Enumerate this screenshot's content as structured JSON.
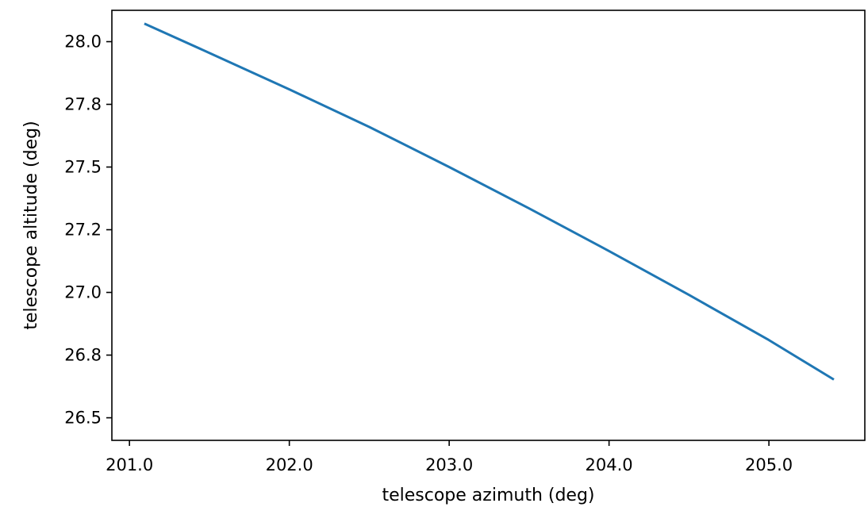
{
  "chart_data": {
    "type": "line",
    "title": "",
    "xlabel": "telescope azimuth (deg)",
    "ylabel": "telescope altitude (deg)",
    "xlim": [
      200.89,
      205.6
    ],
    "ylim": [
      26.41,
      28.125
    ],
    "xticks": [
      201.0,
      202.0,
      203.0,
      204.0,
      205.0
    ],
    "xtick_labels": [
      "201.0",
      "202.0",
      "203.0",
      "204.0",
      "205.0"
    ],
    "yticks": [
      26.5,
      26.75,
      27.0,
      27.25,
      27.5,
      27.75,
      28.0
    ],
    "ytick_labels": [
      "26.5",
      "26.8",
      "27.0",
      "27.2",
      "27.5",
      "27.8",
      "28.0"
    ],
    "grid": false,
    "legend": "none",
    "series": [
      {
        "color": "#1f77b4",
        "x": [
          201.1,
          201.5,
          202.0,
          202.5,
          203.0,
          203.5,
          204.0,
          204.5,
          205.0,
          205.4
        ],
        "y": [
          28.07,
          27.955,
          27.81,
          27.66,
          27.5,
          27.335,
          27.165,
          26.99,
          26.81,
          26.655
        ]
      }
    ]
  }
}
